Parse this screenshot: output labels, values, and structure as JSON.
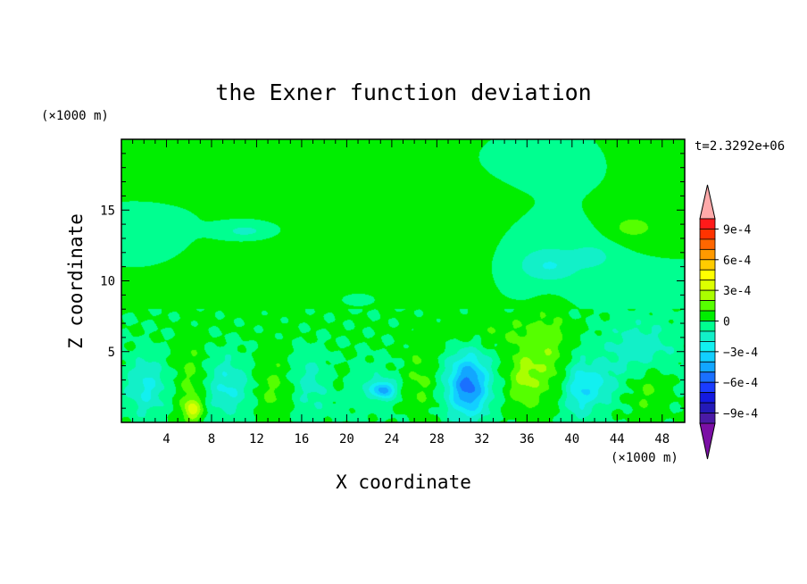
{
  "chart_data": {
    "type": "heatmap",
    "title": "the Exner function deviation",
    "xlabel": "X coordinate",
    "ylabel": "Z coordinate",
    "x_unit": "(×1000 m)",
    "y_unit": "(×1000 m)",
    "time_label": "t=2.3292e+06",
    "xlim": [
      0,
      50
    ],
    "ylim": [
      0,
      20
    ],
    "x_ticks": [
      4,
      8,
      12,
      16,
      20,
      24,
      28,
      32,
      36,
      40,
      44,
      48
    ],
    "y_ticks": [
      5,
      10,
      15
    ],
    "colorbar": {
      "levels": [
        -0.0011,
        -0.001,
        -0.0009,
        -0.0008,
        -0.0007,
        -0.0006,
        -0.0005,
        -0.0004,
        -0.0003,
        -0.0002,
        -0.0001,
        0,
        0.0001,
        0.0002,
        0.0003,
        0.0004,
        0.0005,
        0.0006,
        0.0007,
        0.0008,
        0.0009,
        0.001,
        0.0011
      ],
      "colors": [
        "#7b0fa5",
        "#4a1aa6",
        "#241ab8",
        "#141ae0",
        "#1a3cff",
        "#1a70ff",
        "#12a6ff",
        "#12cfff",
        "#12f0f0",
        "#12f0c8",
        "#00ff90",
        "#00ee00",
        "#55ff00",
        "#aaff00",
        "#dcff00",
        "#ffff00",
        "#ffcc00",
        "#ff9900",
        "#ff6600",
        "#ff3300",
        "#ff1a1a",
        "#ffaaaa"
      ],
      "tick_labels": [
        "9e-4",
        "6e-4",
        "3e-4",
        "0",
        "−3e-4",
        "−6e-4",
        "−9e-4"
      ],
      "tick_values": [
        0.0009,
        0.0006,
        0.0003,
        0,
        -0.0003,
        -0.0006,
        -0.0009
      ],
      "placement": "right"
    },
    "features": [
      {
        "x": 30.8,
        "z": 2.6,
        "value": -0.00055,
        "rx": 1.8,
        "rz": 2.2
      },
      {
        "x": 23.3,
        "z": 2.3,
        "value": -0.0004,
        "rx": 1.0,
        "rz": 0.6
      },
      {
        "x": 2.2,
        "z": 2.5,
        "value": -0.00022,
        "rx": 1.8,
        "rz": 2.0
      },
      {
        "x": 9.5,
        "z": 2.6,
        "value": -0.00022,
        "rx": 2.0,
        "rz": 2.0
      },
      {
        "x": 21.5,
        "z": 2.5,
        "value": -0.0001,
        "rx": 2.8,
        "rz": 1.7
      },
      {
        "x": 42.0,
        "z": 2.6,
        "value": -0.00022,
        "rx": 1.8,
        "rz": 1.5
      },
      {
        "x": 46.0,
        "z": 5.2,
        "value": -0.00018,
        "rx": 3.2,
        "rz": 2.0
      },
      {
        "x": 40.5,
        "z": 2.0,
        "value": -0.00018,
        "rx": 1.2,
        "rz": 2.2
      },
      {
        "x": 17.0,
        "z": 2.8,
        "value": -0.00015,
        "rx": 2.0,
        "rz": 2.2
      },
      {
        "x": 6.2,
        "z": 3.0,
        "value": 0.00012,
        "rx": 1.4,
        "rz": 3.0
      },
      {
        "x": 6.3,
        "z": 0.9,
        "value": 0.0003,
        "rx": 0.8,
        "rz": 0.8
      },
      {
        "x": 13.5,
        "z": 2.4,
        "value": 0.00012,
        "rx": 1.8,
        "rz": 2.6
      },
      {
        "x": 19.0,
        "z": 3.0,
        "value": 0.0001,
        "rx": 1.6,
        "rz": 1.5
      },
      {
        "x": 26.5,
        "z": 3.0,
        "value": 0.00012,
        "rx": 1.4,
        "rz": 2.6
      },
      {
        "x": 35.8,
        "z": 3.2,
        "value": 0.00022,
        "rx": 1.5,
        "rz": 2.4
      },
      {
        "x": 38.0,
        "z": 4.8,
        "value": 0.00015,
        "rx": 1.5,
        "rz": 3.0
      },
      {
        "x": 46.8,
        "z": 2.4,
        "value": 0.00012,
        "rx": 1.6,
        "rz": 2.2
      },
      {
        "x": 33.5,
        "z": 6.5,
        "value": 8e-05,
        "rx": 6.0,
        "rz": 1.2
      },
      {
        "x": 16.0,
        "z": 10.5,
        "value": 7e-05,
        "rx": 10.0,
        "rz": 3.5
      },
      {
        "x": 30.0,
        "z": 14.0,
        "value": 6e-05,
        "rx": 6.0,
        "rz": 4.0
      },
      {
        "x": 5.0,
        "z": 17.5,
        "value": 5e-05,
        "rx": 5.0,
        "rz": 2.0
      },
      {
        "x": 46.5,
        "z": 18.0,
        "value": 5e-05,
        "rx": 4.0,
        "rz": 2.5
      },
      {
        "x": 45.0,
        "z": 14.5,
        "value": 6e-05,
        "rx": 3.0,
        "rz": 1.6
      },
      {
        "x": 45.5,
        "z": 13.7,
        "value": 0.00012,
        "rx": 1.6,
        "rz": 0.6
      },
      {
        "x": 3.0,
        "z": 13.5,
        "value": -5e-05,
        "rx": 3.5,
        "rz": 2.0
      },
      {
        "x": 37.5,
        "z": 12.0,
        "value": -8e-05,
        "rx": 5.0,
        "rz": 2.5
      },
      {
        "x": 38.0,
        "z": 11.0,
        "value": -0.00015,
        "rx": 2.5,
        "rz": 1.0
      },
      {
        "x": 41.8,
        "z": 11.7,
        "value": -0.00015,
        "rx": 1.5,
        "rz": 0.7
      },
      {
        "x": 11.0,
        "z": 13.5,
        "value": -0.00015,
        "rx": 2.5,
        "rz": 0.6
      },
      {
        "x": 20.0,
        "z": 9.0,
        "value": -5e-05,
        "rx": 5.0,
        "rz": 1.5
      },
      {
        "x": 38.0,
        "z": 18.0,
        "value": -5e-05,
        "rx": 6.0,
        "rz": 1.6
      }
    ]
  }
}
